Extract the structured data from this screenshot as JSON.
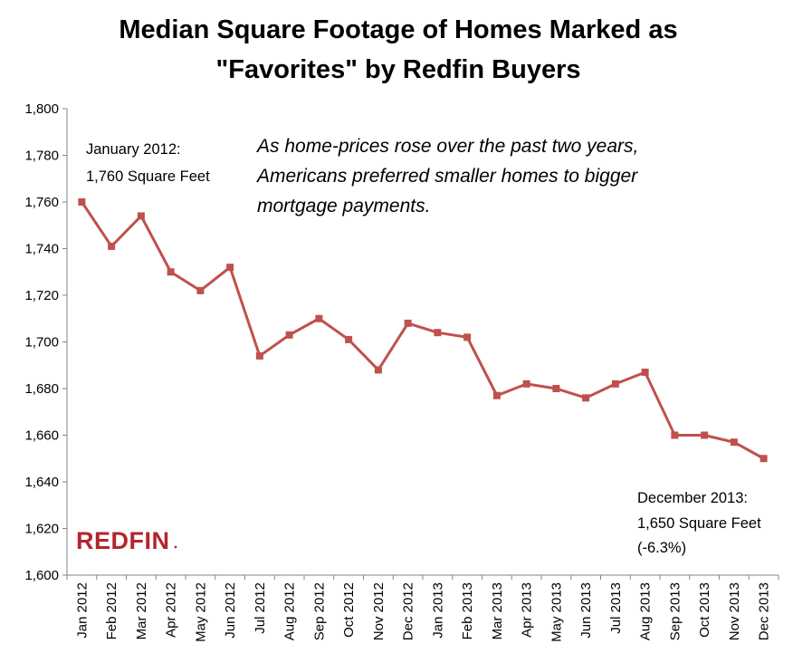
{
  "chart_data": {
    "type": "line",
    "title_lines": [
      "Median Square Footage of Homes Marked as",
      "\"Favorites\" by Redfin Buyers"
    ],
    "categories": [
      "Jan 2012",
      "Feb 2012",
      "Mar 2012",
      "Apr 2012",
      "May 2012",
      "Jun 2012",
      "Jul 2012",
      "Aug 2012",
      "Sep 2012",
      "Oct 2012",
      "Nov 2012",
      "Dec 2012",
      "Jan 2013",
      "Feb 2013",
      "Mar 2013",
      "Apr 2013",
      "May 2013",
      "Jun 2013",
      "Jul 2013",
      "Aug 2013",
      "Sep 2013",
      "Oct 2013",
      "Nov 2013",
      "Dec 2013"
    ],
    "series": [
      {
        "values": [
          1760,
          1741,
          1754,
          1730,
          1722,
          1732,
          1694,
          1703,
          1710,
          1701,
          1688,
          1708,
          1704,
          1702,
          1677,
          1682,
          1680,
          1676,
          1682,
          1687,
          1660,
          1660,
          1657,
          1650
        ]
      }
    ],
    "ylim": [
      1600,
      1800
    ],
    "yticks": [
      1600,
      1620,
      1640,
      1660,
      1680,
      1700,
      1720,
      1740,
      1760,
      1780,
      1800
    ],
    "ytick_labels": [
      "1,600",
      "1,620",
      "1,640",
      "1,660",
      "1,680",
      "1,700",
      "1,720",
      "1,740",
      "1,760",
      "1,780",
      "1,800"
    ],
    "grid": false,
    "legend": "none",
    "line_color": "#c0504d",
    "annotations": {
      "start": [
        "January 2012:",
        "1,760 Square Feet"
      ],
      "headline": [
        "As home-prices rose over the past two years,",
        "Americans preferred smaller homes to bigger",
        "mortgage payments."
      ],
      "end": [
        "December 2013:",
        "1,650 Square Feet",
        "(-6.3%)"
      ]
    },
    "logo_text": "REDFIN",
    "logo_color": "#b3252d"
  }
}
